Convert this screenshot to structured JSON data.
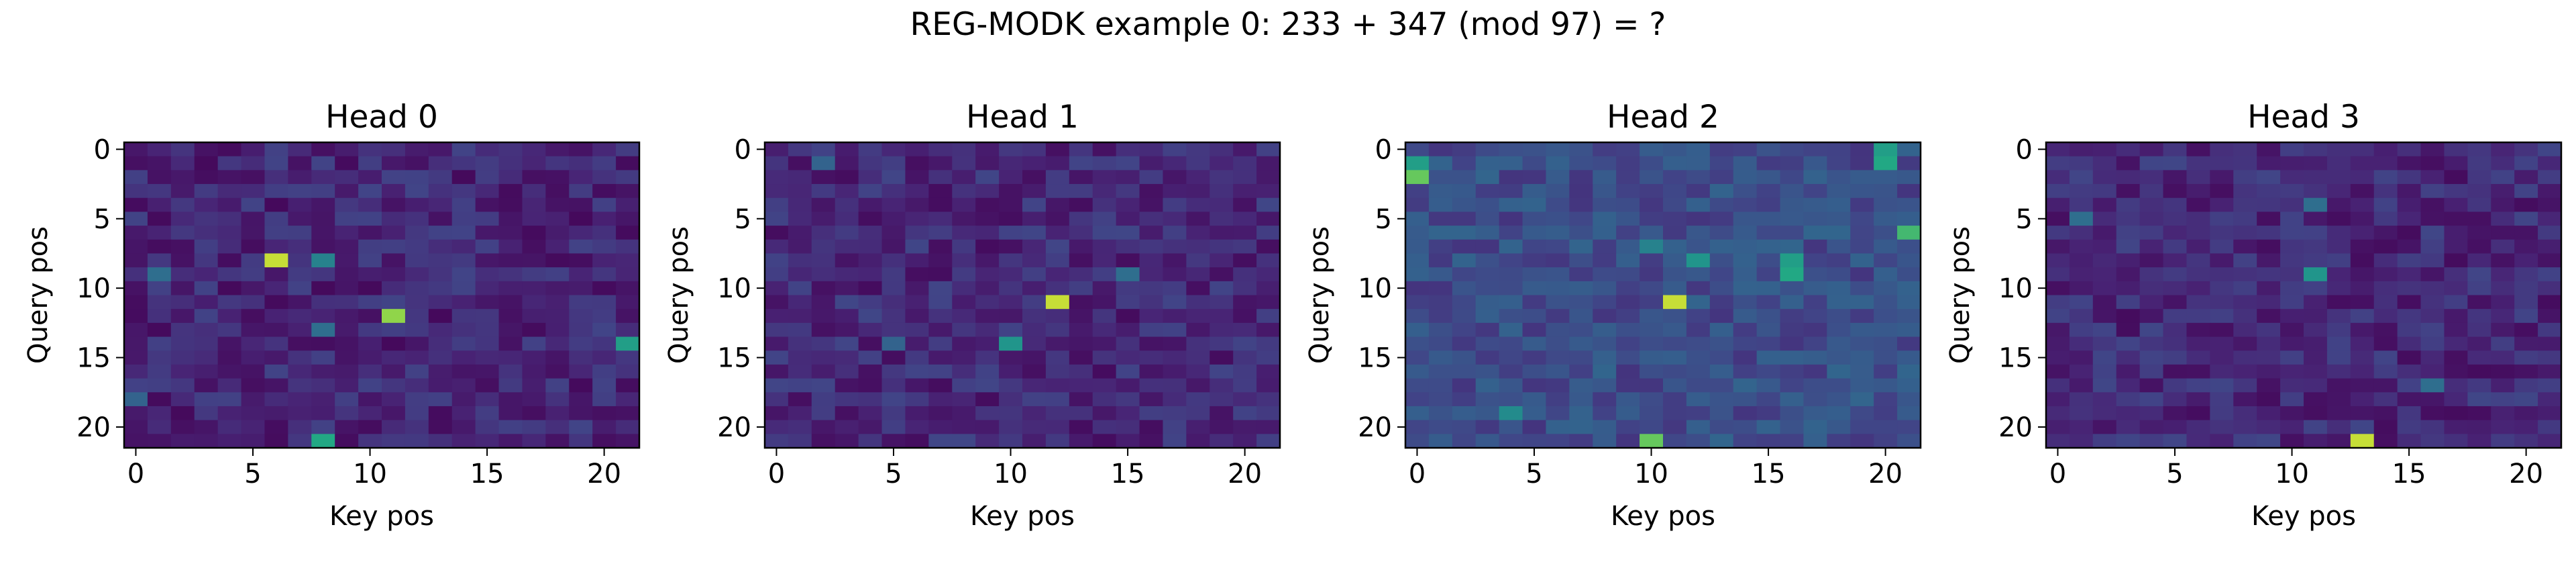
{
  "figure": {
    "title": "REG-MODK example 0: 233 + 347 (mod 97) = ?"
  },
  "chart_data": [
    {
      "type": "heatmap",
      "title": "Head 0",
      "xlabel": "Key pos",
      "ylabel": "Query pos",
      "size": [
        22,
        22
      ],
      "xticks": [
        0,
        5,
        10,
        15,
        20
      ],
      "yticks": [
        0,
        5,
        10,
        15,
        20
      ],
      "colormap": "viridis",
      "base_level": 0.14,
      "hotspots": [
        [
          8,
          6,
          0.95
        ],
        [
          8,
          8,
          0.55
        ],
        [
          9,
          1,
          0.45
        ],
        [
          12,
          11,
          0.9
        ],
        [
          13,
          8,
          0.45
        ],
        [
          14,
          21,
          0.7
        ],
        [
          21,
          8,
          0.75
        ],
        [
          18,
          0,
          0.4
        ]
      ]
    },
    {
      "type": "heatmap",
      "title": "Head 1",
      "xlabel": "Key pos",
      "ylabel": "Query pos",
      "size": [
        22,
        22
      ],
      "xticks": [
        0,
        5,
        10,
        15,
        20
      ],
      "yticks": [
        0,
        5,
        10,
        15,
        20
      ],
      "colormap": "viridis",
      "base_level": 0.15,
      "hotspots": [
        [
          11,
          12,
          0.95
        ],
        [
          14,
          10,
          0.65
        ],
        [
          9,
          15,
          0.45
        ],
        [
          1,
          2,
          0.4
        ],
        [
          14,
          5,
          0.4
        ]
      ]
    },
    {
      "type": "heatmap",
      "title": "Head 2",
      "xlabel": "Key pos",
      "ylabel": "Query pos",
      "size": [
        22,
        22
      ],
      "xticks": [
        0,
        5,
        10,
        15,
        20
      ],
      "yticks": [
        0,
        5,
        10,
        15,
        20
      ],
      "colormap": "viridis",
      "base_level": 0.3,
      "hotspots": [
        [
          1,
          0,
          0.7
        ],
        [
          2,
          0,
          0.85
        ],
        [
          0,
          20,
          0.7
        ],
        [
          1,
          20,
          0.75
        ],
        [
          6,
          21,
          0.8
        ],
        [
          11,
          11,
          0.95
        ],
        [
          8,
          16,
          0.7
        ],
        [
          9,
          16,
          0.75
        ],
        [
          8,
          12,
          0.65
        ],
        [
          21,
          10,
          0.85
        ],
        [
          7,
          10,
          0.55
        ],
        [
          19,
          4,
          0.6
        ]
      ]
    },
    {
      "type": "heatmap",
      "title": "Head 3",
      "xlabel": "Key pos",
      "ylabel": "Query pos",
      "size": [
        22,
        22
      ],
      "xticks": [
        0,
        5,
        10,
        15,
        20
      ],
      "yticks": [
        0,
        5,
        10,
        15,
        20
      ],
      "colormap": "viridis",
      "base_level": 0.15,
      "hotspots": [
        [
          21,
          13,
          0.95
        ],
        [
          9,
          11,
          0.65
        ],
        [
          5,
          1,
          0.45
        ],
        [
          4,
          11,
          0.45
        ],
        [
          17,
          16,
          0.45
        ]
      ]
    }
  ]
}
